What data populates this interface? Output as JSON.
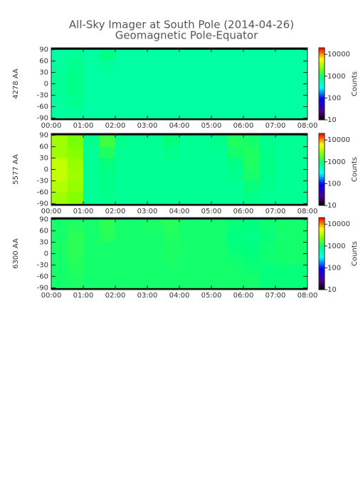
{
  "title": "All-Sky Imager at South Pole (2014-04-26)",
  "subtitle": "Geomagnetic Pole-Equator",
  "chart_data": [
    {
      "type": "heatmap",
      "ylabel": "4278 AA",
      "colorbar_label": "Counts",
      "xlim": [
        0,
        8
      ],
      "ylim": [
        -95,
        95
      ],
      "xticks": [
        {
          "value": 0,
          "label": "00:00"
        },
        {
          "value": 1,
          "label": "01:00"
        },
        {
          "value": 2,
          "label": "02:00"
        },
        {
          "value": 3,
          "label": "03:00"
        },
        {
          "value": 4,
          "label": "04:00"
        },
        {
          "value": 5,
          "label": "05:00"
        },
        {
          "value": 6,
          "label": "06:00"
        },
        {
          "value": 7,
          "label": "07:00"
        },
        {
          "value": 8,
          "label": "08:00"
        }
      ],
      "yticks": [
        90,
        60,
        30,
        0,
        -30,
        -60,
        -90
      ],
      "clim": [
        10,
        20000
      ],
      "cticks": [
        10,
        100,
        1000,
        10000
      ],
      "log_color": true,
      "x_bins": [
        0,
        0.5,
        1,
        1.5,
        2,
        2.5,
        3,
        3.5,
        4,
        4.5,
        5,
        5.5,
        6,
        6.5,
        7,
        7.5,
        8
      ],
      "y_bins": [
        90,
        60,
        30,
        0,
        -30,
        -60,
        -90
      ],
      "z": [
        [
          700,
          800,
          700,
          900,
          700,
          700,
          700,
          700,
          700,
          700,
          700,
          700,
          700,
          700,
          700,
          700
        ],
        [
          750,
          850,
          700,
          750,
          700,
          700,
          700,
          700,
          700,
          700,
          700,
          700,
          700,
          700,
          700,
          700
        ],
        [
          800,
          900,
          700,
          700,
          700,
          700,
          700,
          700,
          700,
          700,
          700,
          700,
          700,
          700,
          700,
          700
        ],
        [
          800,
          900,
          700,
          700,
          700,
          700,
          700,
          700,
          700,
          700,
          700,
          700,
          700,
          700,
          700,
          700
        ],
        [
          750,
          850,
          700,
          700,
          700,
          700,
          700,
          700,
          700,
          700,
          700,
          700,
          700,
          700,
          700,
          700
        ],
        [
          700,
          750,
          700,
          700,
          700,
          700,
          700,
          700,
          700,
          700,
          700,
          700,
          700,
          700,
          700,
          700
        ]
      ]
    },
    {
      "type": "heatmap",
      "ylabel": "5577 AA",
      "colorbar_label": "Counts",
      "xlim": [
        0,
        8
      ],
      "ylim": [
        -95,
        95
      ],
      "xticks": [
        {
          "value": 0,
          "label": "00:00"
        },
        {
          "value": 1,
          "label": "01:00"
        },
        {
          "value": 2,
          "label": "02:00"
        },
        {
          "value": 3,
          "label": "03:00"
        },
        {
          "value": 4,
          "label": "04:00"
        },
        {
          "value": 5,
          "label": "05:00"
        },
        {
          "value": 6,
          "label": "06:00"
        },
        {
          "value": 7,
          "label": "07:00"
        },
        {
          "value": 8,
          "label": "08:00"
        }
      ],
      "yticks": [
        90,
        60,
        30,
        0,
        -30,
        -60,
        -90
      ],
      "clim": [
        10,
        20000
      ],
      "cticks": [
        10,
        100,
        1000,
        10000
      ],
      "log_color": true,
      "x_bins": [
        0,
        0.5,
        1,
        1.5,
        2,
        2.5,
        3,
        3.5,
        4,
        4.5,
        5,
        5.5,
        6,
        6.5,
        7,
        7.5,
        8
      ],
      "y_bins": [
        90,
        60,
        30,
        0,
        -30,
        -60,
        -90
      ],
      "z": [
        [
          3000,
          2200,
          850,
          1500,
          850,
          800,
          800,
          1000,
          800,
          800,
          850,
          1200,
          1100,
          850,
          800,
          800
        ],
        [
          3000,
          2500,
          800,
          1200,
          800,
          800,
          800,
          850,
          800,
          800,
          800,
          1100,
          1200,
          900,
          800,
          800
        ],
        [
          4000,
          2800,
          800,
          1000,
          800,
          800,
          800,
          800,
          800,
          800,
          800,
          900,
          1200,
          900,
          800,
          800
        ],
        [
          4000,
          3000,
          800,
          900,
          800,
          800,
          800,
          800,
          800,
          800,
          800,
          850,
          1100,
          900,
          800,
          800
        ],
        [
          3500,
          2800,
          800,
          900,
          800,
          800,
          800,
          800,
          800,
          800,
          800,
          800,
          1000,
          850,
          800,
          800
        ],
        [
          3000,
          2500,
          800,
          850,
          800,
          800,
          800,
          800,
          800,
          800,
          800,
          800,
          900,
          800,
          800,
          800
        ]
      ]
    },
    {
      "type": "heatmap",
      "ylabel": "6300 AA",
      "colorbar_label": "Counts",
      "xlim": [
        0,
        8
      ],
      "ylim": [
        -95,
        95
      ],
      "xticks": [
        {
          "value": 0,
          "label": "00:00"
        },
        {
          "value": 1,
          "label": "01:00"
        },
        {
          "value": 2,
          "label": "02:00"
        },
        {
          "value": 3,
          "label": "03:00"
        },
        {
          "value": 4,
          "label": "04:00"
        },
        {
          "value": 5,
          "label": "05:00"
        },
        {
          "value": 6,
          "label": "06:00"
        },
        {
          "value": 7,
          "label": "07:00"
        },
        {
          "value": 8,
          "label": "08:00"
        }
      ],
      "yticks": [
        90,
        60,
        30,
        0,
        -30,
        -60,
        -90
      ],
      "clim": [
        10,
        20000
      ],
      "cticks": [
        10,
        100,
        1000,
        10000
      ],
      "log_color": true,
      "x_bins": [
        0,
        0.5,
        1,
        1.5,
        2,
        2.5,
        3,
        3.5,
        4,
        4.5,
        5,
        5.5,
        6,
        6.5,
        7,
        7.5,
        8
      ],
      "y_bins": [
        90,
        60,
        30,
        0,
        -30,
        -60,
        -90
      ],
      "z": [
        [
          1100,
          1200,
          1100,
          1300,
          1100,
          1100,
          1150,
          1250,
          1100,
          1100,
          1100,
          1000,
          950,
          1050,
          1100,
          1100
        ],
        [
          1100,
          1300,
          1100,
          1250,
          1100,
          1100,
          1100,
          1200,
          1100,
          1100,
          1100,
          950,
          900,
          1000,
          1100,
          1100
        ],
        [
          1150,
          1300,
          1100,
          1100,
          1100,
          1100,
          1100,
          1150,
          1100,
          1100,
          1100,
          1000,
          950,
          1050,
          1100,
          1100
        ],
        [
          1100,
          1250,
          1100,
          1100,
          1100,
          1100,
          1100,
          1150,
          1100,
          1100,
          1100,
          1050,
          1000,
          1050,
          1100,
          1100
        ],
        [
          1100,
          1200,
          1100,
          1100,
          1100,
          1100,
          1100,
          1100,
          1100,
          1100,
          1100,
          1100,
          1050,
          1000,
          1000,
          1000
        ],
        [
          1100,
          1150,
          1100,
          1100,
          1100,
          1100,
          1100,
          1100,
          1100,
          1100,
          1100,
          1100,
          1100,
          1000,
          1000,
          1000
        ]
      ]
    }
  ]
}
